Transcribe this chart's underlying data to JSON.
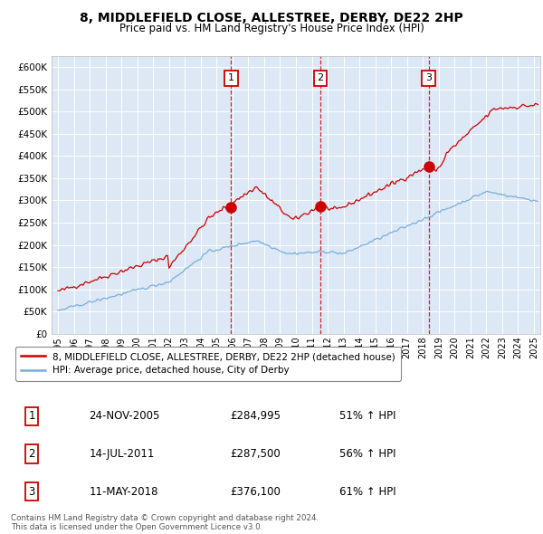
{
  "title1": "8, MIDDLEFIELD CLOSE, ALLESTREE, DERBY, DE22 2HP",
  "title2": "Price paid vs. HM Land Registry's House Price Index (HPI)",
  "background_color": "#dce8f5",
  "legend_label_red": "8, MIDDLEFIELD CLOSE, ALLESTREE, DERBY, DE22 2HP (detached house)",
  "legend_label_blue": "HPI: Average price, detached house, City of Derby",
  "footer": "Contains HM Land Registry data © Crown copyright and database right 2024.\nThis data is licensed under the Open Government Licence v3.0.",
  "transactions": [
    {
      "num": 1,
      "date": "24-NOV-2005",
      "price": "£284,995",
      "hpi": "51% ↑ HPI",
      "x": 2005.9
    },
    {
      "num": 2,
      "date": "14-JUL-2011",
      "price": "£287,500",
      "hpi": "56% ↑ HPI",
      "x": 2011.54
    },
    {
      "num": 3,
      "date": "11-MAY-2018",
      "price": "£376,100",
      "hpi": "61% ↑ HPI",
      "x": 2018.36
    }
  ],
  "ylim": [
    0,
    625000
  ],
  "yticks": [
    0,
    50000,
    100000,
    150000,
    200000,
    250000,
    300000,
    350000,
    400000,
    450000,
    500000,
    550000,
    600000
  ],
  "ytick_labels": [
    "£0",
    "£50K",
    "£100K",
    "£150K",
    "£200K",
    "£250K",
    "£300K",
    "£350K",
    "£400K",
    "£450K",
    "£500K",
    "£550K",
    "£600K"
  ],
  "xlim_start": 1994.6,
  "xlim_end": 2025.4,
  "red_line_color": "#cc0000",
  "blue_line_color": "#7aaddb",
  "transaction_marker_color": "#cc0000",
  "vline_color": "#cc0000",
  "box_edge_color": "#cc0000"
}
